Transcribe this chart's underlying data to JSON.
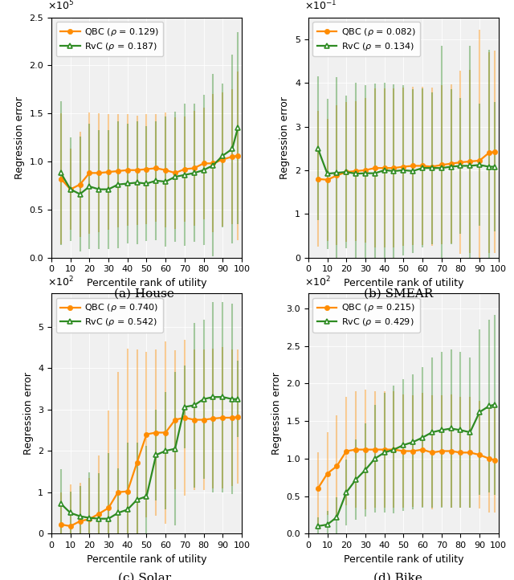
{
  "x": [
    5,
    10,
    15,
    20,
    25,
    30,
    35,
    40,
    45,
    50,
    55,
    60,
    65,
    70,
    75,
    80,
    85,
    90,
    95,
    98
  ],
  "subplots": [
    {
      "title": "(a) House",
      "scale_label": "$\\times10^5$",
      "ylabel": "Regression error",
      "xlabel": "Percentile rank of utility",
      "ylim": [
        0.0,
        2.5
      ],
      "yticks": [
        0.0,
        0.5,
        1.0,
        1.5,
        2.0,
        2.5
      ],
      "qbc_rho": "0.129",
      "rvc_rho": "0.187",
      "qbc_y": [
        0.82,
        0.71,
        0.76,
        0.88,
        0.88,
        0.89,
        0.9,
        0.91,
        0.91,
        0.92,
        0.93,
        0.91,
        0.88,
        0.92,
        0.93,
        0.98,
        0.98,
        1.02,
        1.05,
        1.06
      ],
      "qbc_err": [
        0.68,
        0.42,
        0.55,
        0.63,
        0.62,
        0.6,
        0.59,
        0.58,
        0.57,
        0.57,
        0.56,
        0.6,
        0.58,
        0.55,
        0.6,
        0.58,
        0.72,
        0.7,
        0.7,
        0.88
      ],
      "rvc_y": [
        0.88,
        0.71,
        0.66,
        0.74,
        0.71,
        0.71,
        0.76,
        0.77,
        0.78,
        0.77,
        0.8,
        0.79,
        0.84,
        0.86,
        0.88,
        0.91,
        0.96,
        1.06,
        1.13,
        1.35
      ],
      "rvc_err": [
        0.75,
        0.54,
        0.6,
        0.65,
        0.62,
        0.62,
        0.66,
        0.62,
        0.64,
        0.6,
        0.62,
        0.68,
        0.68,
        0.74,
        0.72,
        0.78,
        0.95,
        0.75,
        0.98,
        1.0
      ]
    },
    {
      "title": "(b) SMEAR",
      "scale_label": "$\\times10^{-1}$",
      "ylabel": "Regression error",
      "xlabel": "Percentile rank of utility",
      "ylim": [
        0.0,
        5.5
      ],
      "yticks": [
        0,
        1,
        2,
        3,
        4,
        5
      ],
      "qbc_rho": "0.082",
      "rvc_rho": "0.134",
      "qbc_y": [
        1.8,
        1.78,
        1.88,
        1.96,
        1.98,
        2.0,
        2.05,
        2.05,
        2.05,
        2.08,
        2.1,
        2.1,
        2.08,
        2.12,
        2.15,
        2.18,
        2.2,
        2.22,
        2.4,
        2.42
      ],
      "qbc_err": [
        1.55,
        1.4,
        1.6,
        1.6,
        1.6,
        1.65,
        1.82,
        1.82,
        1.82,
        1.82,
        1.82,
        1.82,
        1.82,
        1.82,
        1.82,
        2.1,
        2.1,
        3.0,
        2.3,
        2.32
      ],
      "rvc_y": [
        2.5,
        1.92,
        1.94,
        1.96,
        1.92,
        1.93,
        1.93,
        2.0,
        1.98,
        2.0,
        1.98,
        2.05,
        2.05,
        2.05,
        2.08,
        2.1,
        2.1,
        2.12,
        2.08,
        2.08
      ],
      "rvc_err": [
        1.65,
        1.72,
        2.2,
        1.75,
        2.08,
        2.02,
        2.05,
        2.0,
        1.98,
        1.95,
        1.88,
        1.82,
        1.74,
        2.8,
        1.78,
        1.55,
        2.75,
        1.4,
        2.68,
        1.48
      ]
    },
    {
      "title": "(c) Solar",
      "scale_label": "$\\times10^2$",
      "ylabel": "Regression error",
      "xlabel": "Percentile rank of utility",
      "ylim": [
        0.0,
        5.8
      ],
      "yticks": [
        0,
        1,
        2,
        3,
        4,
        5
      ],
      "qbc_rho": "0.740",
      "rvc_rho": "0.542",
      "qbc_y": [
        0.22,
        0.18,
        0.3,
        0.35,
        0.48,
        0.62,
        1.0,
        1.02,
        1.72,
        2.4,
        2.44,
        2.44,
        2.75,
        2.8,
        2.75,
        2.75,
        2.78,
        2.8,
        2.8,
        2.82
      ],
      "qbc_err": [
        0.78,
        1.0,
        0.92,
        1.0,
        1.4,
        2.35,
        2.9,
        3.44,
        2.72,
        2.0,
        2.0,
        2.2,
        1.68,
        1.88,
        1.7,
        1.7,
        1.68,
        1.7,
        1.65,
        1.62
      ],
      "rvc_y": [
        0.72,
        0.5,
        0.42,
        0.38,
        0.36,
        0.36,
        0.5,
        0.58,
        0.82,
        0.9,
        1.9,
        2.0,
        2.05,
        3.06,
        3.1,
        3.25,
        3.3,
        3.3,
        3.25,
        3.25
      ],
      "rvc_err": [
        0.84,
        0.52,
        0.72,
        1.1,
        1.1,
        1.58,
        1.08,
        1.62,
        1.38,
        1.22,
        1.1,
        1.42,
        1.85,
        1.0,
        1.98,
        1.92,
        2.3,
        2.3,
        2.3,
        0.92
      ]
    },
    {
      "title": "(d) Bike",
      "scale_label": "$\\times10^2$",
      "ylabel": "Regression error",
      "xlabel": "Percentile rank of utility",
      "ylim": [
        0.0,
        3.2
      ],
      "yticks": [
        0.0,
        0.5,
        1.0,
        1.5,
        2.0,
        2.5,
        3.0
      ],
      "qbc_rho": "0.215",
      "rvc_rho": "0.429",
      "qbc_y": [
        0.6,
        0.8,
        0.9,
        1.1,
        1.12,
        1.12,
        1.12,
        1.12,
        1.12,
        1.1,
        1.1,
        1.12,
        1.08,
        1.1,
        1.1,
        1.08,
        1.08,
        1.05,
        1.0,
        0.98
      ],
      "qbc_err": [
        0.48,
        0.55,
        0.68,
        0.72,
        0.78,
        0.8,
        0.78,
        0.78,
        0.78,
        0.76,
        0.74,
        0.76,
        0.76,
        0.74,
        0.76,
        0.74,
        0.74,
        0.72,
        0.72,
        0.7
      ],
      "rvc_y": [
        0.1,
        0.12,
        0.22,
        0.55,
        0.72,
        0.85,
        1.0,
        1.08,
        1.12,
        1.18,
        1.22,
        1.28,
        1.35,
        1.38,
        1.4,
        1.38,
        1.35,
        1.62,
        1.7,
        1.72
      ],
      "rvc_err": [
        0.12,
        0.18,
        0.26,
        0.44,
        0.54,
        0.62,
        0.72,
        0.8,
        0.85,
        0.88,
        0.9,
        0.94,
        1.0,
        1.04,
        1.05,
        1.04,
        1.0,
        1.1,
        1.15,
        1.2
      ]
    }
  ],
  "orange_color": "#FF8C00",
  "green_color": "#2E8B22",
  "orange_err_alpha": 0.4,
  "green_err_alpha": 0.4,
  "marker_size": 4.5,
  "line_width": 1.6,
  "err_linewidth": 1.5,
  "background_color": "#f0f0f0"
}
